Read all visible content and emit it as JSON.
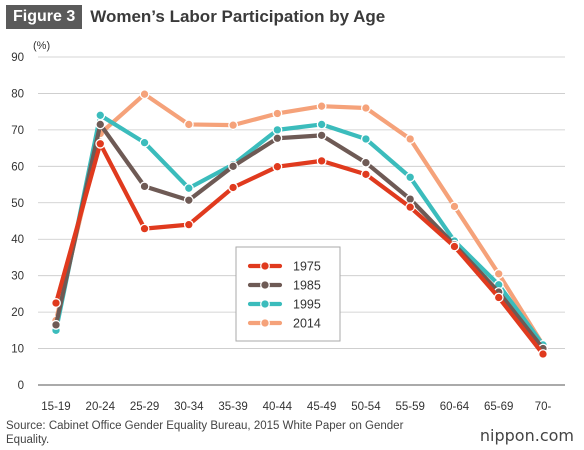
{
  "figure_label": "Figure 3",
  "title": "Women’s Labor Participation by Age",
  "source": "Source: Cabinet Office Gender Equality Bureau, 2015 White Paper on Gender Equality.",
  "brand": "nippon.com",
  "chart_data": {
    "type": "line",
    "unit_label": "(%)",
    "ylim": [
      0,
      90
    ],
    "yticks": [
      0,
      10,
      20,
      30,
      40,
      50,
      60,
      70,
      80,
      90
    ],
    "grid": true,
    "legend_position": "center",
    "categories": [
      "15-19",
      "20-24",
      "25-29",
      "30-34",
      "35-39",
      "40-44",
      "45-49",
      "50-54",
      "55-59",
      "60-64",
      "65-69",
      "70-"
    ],
    "series": [
      {
        "name": "1975",
        "color": "#e03a1e",
        "values": [
          22.5,
          66.2,
          42.9,
          44.0,
          54.2,
          59.9,
          61.5,
          57.8,
          48.8,
          38.0,
          24.0,
          8.5
        ]
      },
      {
        "name": "1985",
        "color": "#6e5a55",
        "values": [
          16.5,
          71.5,
          54.5,
          50.7,
          60.0,
          67.7,
          68.5,
          61.0,
          51.0,
          38.5,
          25.5,
          10.0
        ]
      },
      {
        "name": "1995",
        "color": "#3bbcbc",
        "values": [
          15.0,
          74.0,
          66.5,
          54.0,
          60.5,
          70.0,
          71.5,
          67.5,
          57.0,
          39.5,
          27.5,
          11.0
        ]
      },
      {
        "name": "2014",
        "color": "#f5a27a",
        "values": [
          17.7,
          69.0,
          79.8,
          71.5,
          71.3,
          74.5,
          76.5,
          76.0,
          67.5,
          49.0,
          30.5,
          11.0
        ]
      }
    ]
  }
}
